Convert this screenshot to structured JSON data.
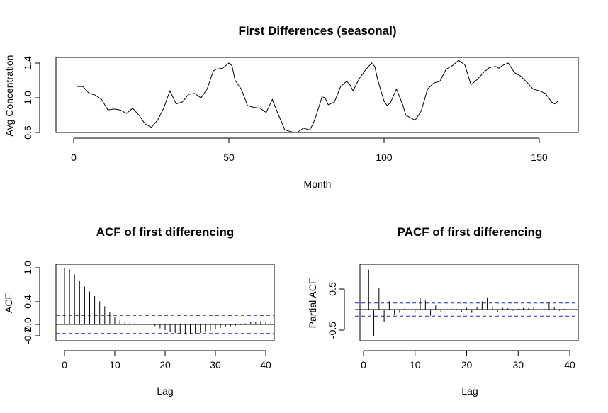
{
  "chart_data": [
    {
      "type": "line",
      "title": "First Differences (seasonal)",
      "xlabel": "Month",
      "ylabel": "Avg Concentration",
      "xlim": [
        0,
        160
      ],
      "ylim": [
        0.6,
        1.4
      ],
      "xticks": [
        0,
        50,
        100,
        150
      ],
      "yticks": [
        0.6,
        1.0,
        1.4
      ],
      "xtick_labels": [
        "0",
        "50",
        "100",
        "150"
      ],
      "ytick_labels": [
        "0.6",
        "1.0",
        "1.4"
      ],
      "series": [
        {
          "x": [
            1,
            3,
            5,
            7,
            9,
            11,
            13,
            15,
            17,
            19,
            21,
            23,
            25,
            26,
            27,
            29,
            31,
            33,
            35,
            37,
            39,
            41,
            43,
            45,
            46,
            48,
            50,
            51,
            52,
            54,
            56,
            58,
            60,
            62,
            64,
            66,
            67,
            68,
            70,
            71,
            72,
            74,
            76,
            77,
            78,
            80,
            81,
            82,
            84,
            86,
            88,
            89,
            90,
            92,
            94,
            96,
            97,
            98,
            100,
            101,
            102,
            104,
            106,
            107,
            108,
            110,
            112,
            114,
            116,
            118,
            120,
            122,
            123,
            124,
            126,
            128,
            130,
            132,
            134,
            136,
            137,
            138,
            140,
            142,
            144,
            146,
            148,
            150,
            152,
            154,
            155,
            156
          ],
          "y": [
            1.13,
            1.13,
            1.05,
            1.03,
            0.98,
            0.86,
            0.87,
            0.86,
            0.82,
            0.88,
            0.8,
            0.7,
            0.66,
            0.7,
            0.74,
            0.88,
            1.08,
            0.93,
            0.95,
            1.04,
            1.05,
            1.0,
            1.1,
            1.31,
            1.33,
            1.34,
            1.4,
            1.37,
            1.2,
            1.1,
            0.91,
            0.89,
            0.88,
            0.83,
            0.98,
            0.8,
            0.72,
            0.63,
            0.61,
            0.6,
            0.6,
            0.65,
            0.63,
            0.69,
            0.78,
            1.01,
            1.0,
            0.92,
            0.95,
            1.13,
            1.19,
            1.15,
            1.08,
            1.22,
            1.32,
            1.4,
            1.36,
            1.2,
            0.96,
            0.91,
            0.94,
            1.1,
            0.92,
            0.8,
            0.78,
            0.74,
            0.85,
            1.1,
            1.17,
            1.19,
            1.33,
            1.37,
            1.4,
            1.43,
            1.38,
            1.15,
            1.21,
            1.29,
            1.35,
            1.36,
            1.34,
            1.37,
            1.4,
            1.29,
            1.25,
            1.18,
            1.1,
            1.08,
            1.05,
            0.95,
            0.93,
            0.96
          ]
        }
      ]
    },
    {
      "type": "bar",
      "title": "ACF of first differencing",
      "xlabel": "Lag",
      "ylabel": "ACF",
      "xlim": [
        0,
        40
      ],
      "ylim": [
        -0.2,
        1.0
      ],
      "xticks": [
        0,
        10,
        20,
        30,
        40
      ],
      "yticks": [
        -0.2,
        0.0,
        0.4,
        1.0
      ],
      "xtick_labels": [
        "0",
        "10",
        "20",
        "30",
        "40"
      ],
      "ytick_labels": [
        "-0.2",
        "0.0",
        "0.4",
        "1.0"
      ],
      "conf_limit": 0.16,
      "lags": [
        0,
        1,
        2,
        3,
        4,
        5,
        6,
        7,
        8,
        9,
        10,
        11,
        12,
        13,
        14,
        15,
        16,
        17,
        18,
        19,
        20,
        21,
        22,
        23,
        24,
        25,
        26,
        27,
        28,
        29,
        30,
        31,
        32,
        33,
        34,
        35,
        36,
        37,
        38,
        39,
        40
      ],
      "values": [
        1.0,
        0.97,
        0.88,
        0.77,
        0.67,
        0.58,
        0.5,
        0.41,
        0.32,
        0.22,
        0.14,
        0.07,
        0.05,
        0.04,
        0.04,
        0.02,
        0.01,
        0.0,
        -0.03,
        -0.07,
        -0.1,
        -0.13,
        -0.15,
        -0.16,
        -0.17,
        -0.17,
        -0.16,
        -0.15,
        -0.14,
        -0.11,
        -0.08,
        -0.06,
        -0.04,
        -0.03,
        -0.02,
        -0.01,
        0.02,
        0.04,
        0.05,
        0.06,
        0.05
      ]
    },
    {
      "type": "bar",
      "title": "PACF of first differencing",
      "xlabel": "Lag",
      "ylabel": "Partial ACF",
      "xlim": [
        0,
        41
      ],
      "ylim": [
        -0.75,
        1.0
      ],
      "xticks": [
        0,
        10,
        20,
        30,
        40
      ],
      "yticks": [
        -0.5,
        0.5
      ],
      "xtick_labels": [
        "0",
        "10",
        "20",
        "30",
        "40"
      ],
      "ytick_labels": [
        "-0.5",
        "0.5"
      ],
      "conf_limit": 0.16,
      "lags": [
        1,
        2,
        3,
        4,
        5,
        6,
        7,
        8,
        9,
        10,
        11,
        12,
        13,
        14,
        15,
        16,
        17,
        18,
        19,
        20,
        21,
        22,
        23,
        24,
        25,
        26,
        27,
        28,
        29,
        30,
        31,
        32,
        33,
        34,
        35,
        36,
        37,
        38,
        39,
        40
      ],
      "values": [
        0.97,
        -0.65,
        0.52,
        -0.3,
        0.2,
        -0.12,
        -0.08,
        0.04,
        -0.1,
        -0.08,
        0.28,
        0.22,
        -0.15,
        0.1,
        -0.06,
        -0.12,
        0.03,
        0.02,
        -0.05,
        0.04,
        -0.08,
        0.06,
        0.2,
        0.3,
        0.08,
        -0.06,
        0.04,
        0.03,
        -0.03,
        0.02,
        0.04,
        0.03,
        0.05,
        -0.02,
        0.04,
        0.16,
        0.05,
        -0.03,
        0.02,
        0.01
      ]
    }
  ]
}
